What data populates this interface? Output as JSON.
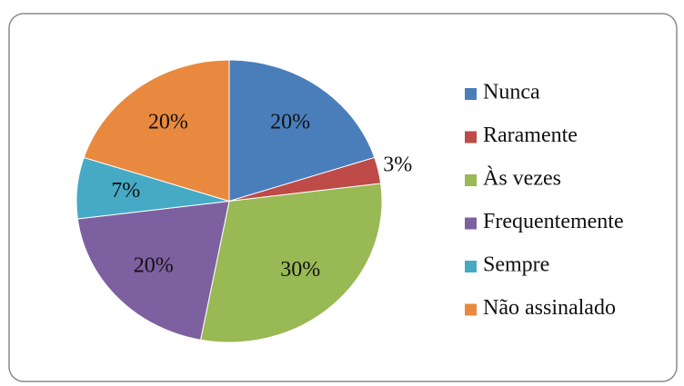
{
  "chart_data": {
    "type": "pie",
    "categories": [
      "Nunca",
      "Raramente",
      "Às vezes",
      "Frequentemente",
      "Sempre",
      "Não assinalado"
    ],
    "values": [
      20,
      3,
      30,
      20,
      7,
      20
    ],
    "value_labels": [
      "20%",
      "3%",
      "30%",
      "20%",
      "7%",
      "20%"
    ],
    "colors": [
      "#4a7ebb",
      "#be4b48",
      "#98b954",
      "#7d60a0",
      "#46aac5",
      "#e8893f"
    ],
    "legend": "right"
  }
}
